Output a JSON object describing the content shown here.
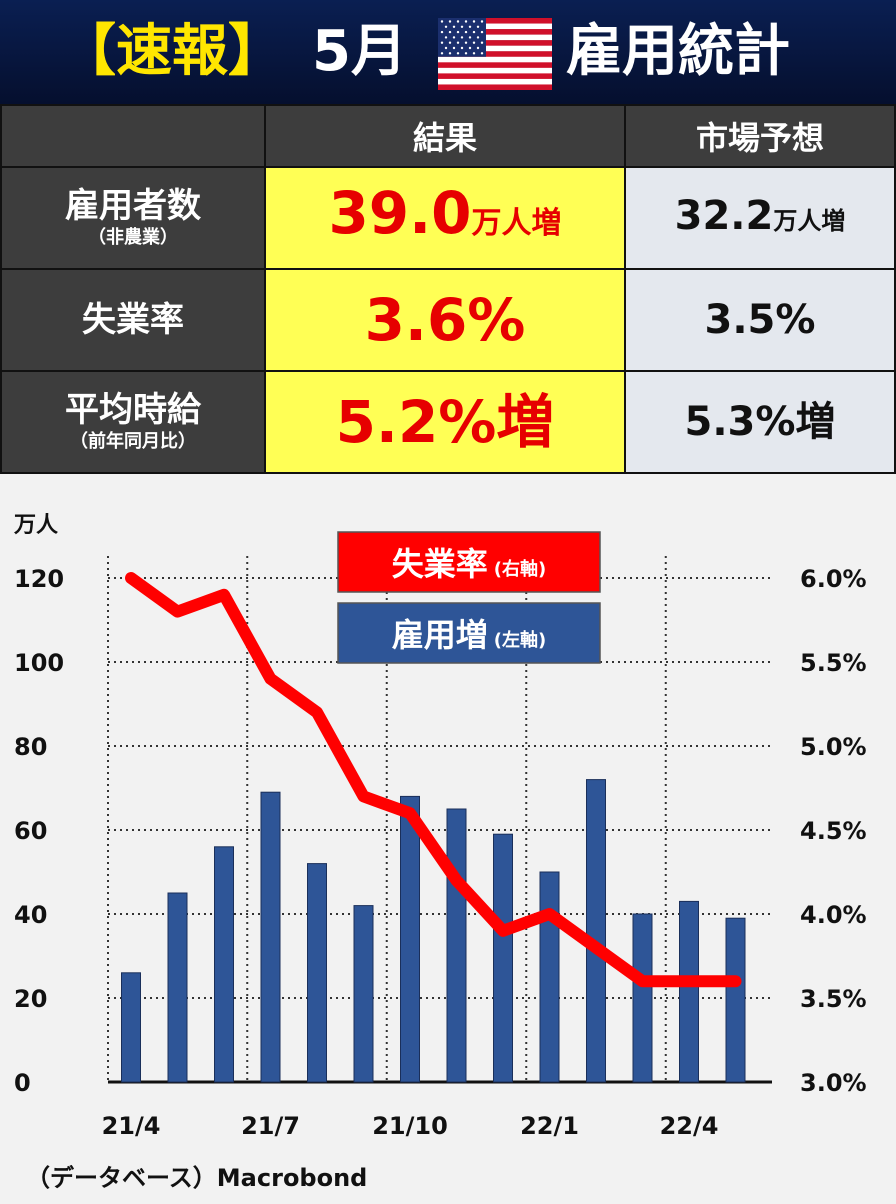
{
  "header": {
    "badge": "【速報】",
    "month": "5月",
    "title": "雇用統計"
  },
  "table": {
    "col_result": "結果",
    "col_forecast": "市場予想",
    "rows": [
      {
        "label": "雇用者数",
        "sub": "（非農業）",
        "result_num": "39.0",
        "result_unit": "万人増",
        "forecast_num": "32.2",
        "forecast_unit": "万人増"
      },
      {
        "label": "失業率",
        "sub": "",
        "result_num": "3.6%",
        "result_unit": "",
        "forecast_num": "3.5%",
        "forecast_unit": ""
      },
      {
        "label": "平均時給",
        "sub": "（前年同月比）",
        "result_num": "5.2%増",
        "result_unit": "",
        "forecast_num": "5.3%増",
        "forecast_unit": ""
      }
    ]
  },
  "colors": {
    "header_bg": "#0a1f52",
    "badge_yellow": "#ffe600",
    "result_red": "#e60000",
    "result_cell_yellow": "#ffff55",
    "bar_blue": "#2e5597",
    "line_red": "#ff0000"
  },
  "chart_data": {
    "type": "bar+line",
    "categories": [
      "21/4",
      "21/5",
      "21/6",
      "21/7",
      "21/8",
      "21/9",
      "21/10",
      "21/11",
      "21/12",
      "22/1",
      "22/2",
      "22/3",
      "22/4",
      "22/5"
    ],
    "tick_labels": [
      "21/4",
      "21/7",
      "21/10",
      "22/1",
      "22/4"
    ],
    "left_axis": {
      "unit": "万人",
      "ticks": [
        "0",
        "20",
        "40",
        "60",
        "80",
        "100",
        "120"
      ],
      "range": [
        0,
        120
      ]
    },
    "right_axis": {
      "ticks": [
        "3.0%",
        "3.5%",
        "4.0%",
        "4.5%",
        "5.0%",
        "5.5%",
        "6.0%"
      ],
      "range": [
        3.0,
        6.0
      ]
    },
    "series": [
      {
        "name": "雇用増",
        "axis_note": "(左軸)",
        "type": "bar",
        "axis": "left",
        "color": "#2e5597",
        "values": [
          26,
          45,
          56,
          69,
          52,
          42,
          68,
          65,
          59,
          50,
          72,
          40,
          43,
          39
        ]
      },
      {
        "name": "失業率",
        "axis_note": "(右軸)",
        "type": "line",
        "axis": "right",
        "color": "#ff0000",
        "values": [
          6.0,
          5.8,
          5.9,
          5.4,
          5.2,
          4.7,
          4.6,
          4.2,
          3.9,
          4.0,
          3.8,
          3.6,
          3.6,
          3.6
        ]
      }
    ],
    "grid": true
  },
  "source": "（データベース）Macrobond"
}
